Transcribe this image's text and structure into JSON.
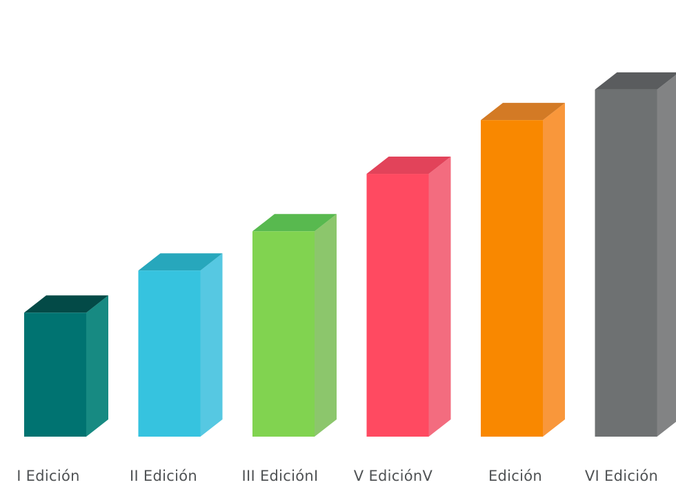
{
  "chart_data": {
    "type": "bar",
    "style": "3d",
    "categories": [
      "I Edición",
      "II Edición",
      "III EdiciónI",
      "V EdiciónV",
      "Edición",
      "VI Edición"
    ],
    "values": [
      30,
      40.2,
      49.7,
      63.6,
      76.6,
      84
    ],
    "ylim": [
      0,
      100
    ],
    "grid": false,
    "colors": [
      {
        "front": "#007371",
        "side": "#178a82",
        "top": "#034a47"
      },
      {
        "front": "#36c3df",
        "side": "#56c8e2",
        "top": "#27a7bc"
      },
      {
        "front": "#81d350",
        "side": "#8cc66c",
        "top": "#58b94f"
      },
      {
        "front": "#ff4a61",
        "side": "#f36c7f",
        "top": "#e2435a"
      },
      {
        "front": "#f98800",
        "side": "#f9973b",
        "top": "#d37a25"
      },
      {
        "front": "#6e7172",
        "side": "#828384",
        "top": "#5a5c5e"
      }
    ]
  }
}
